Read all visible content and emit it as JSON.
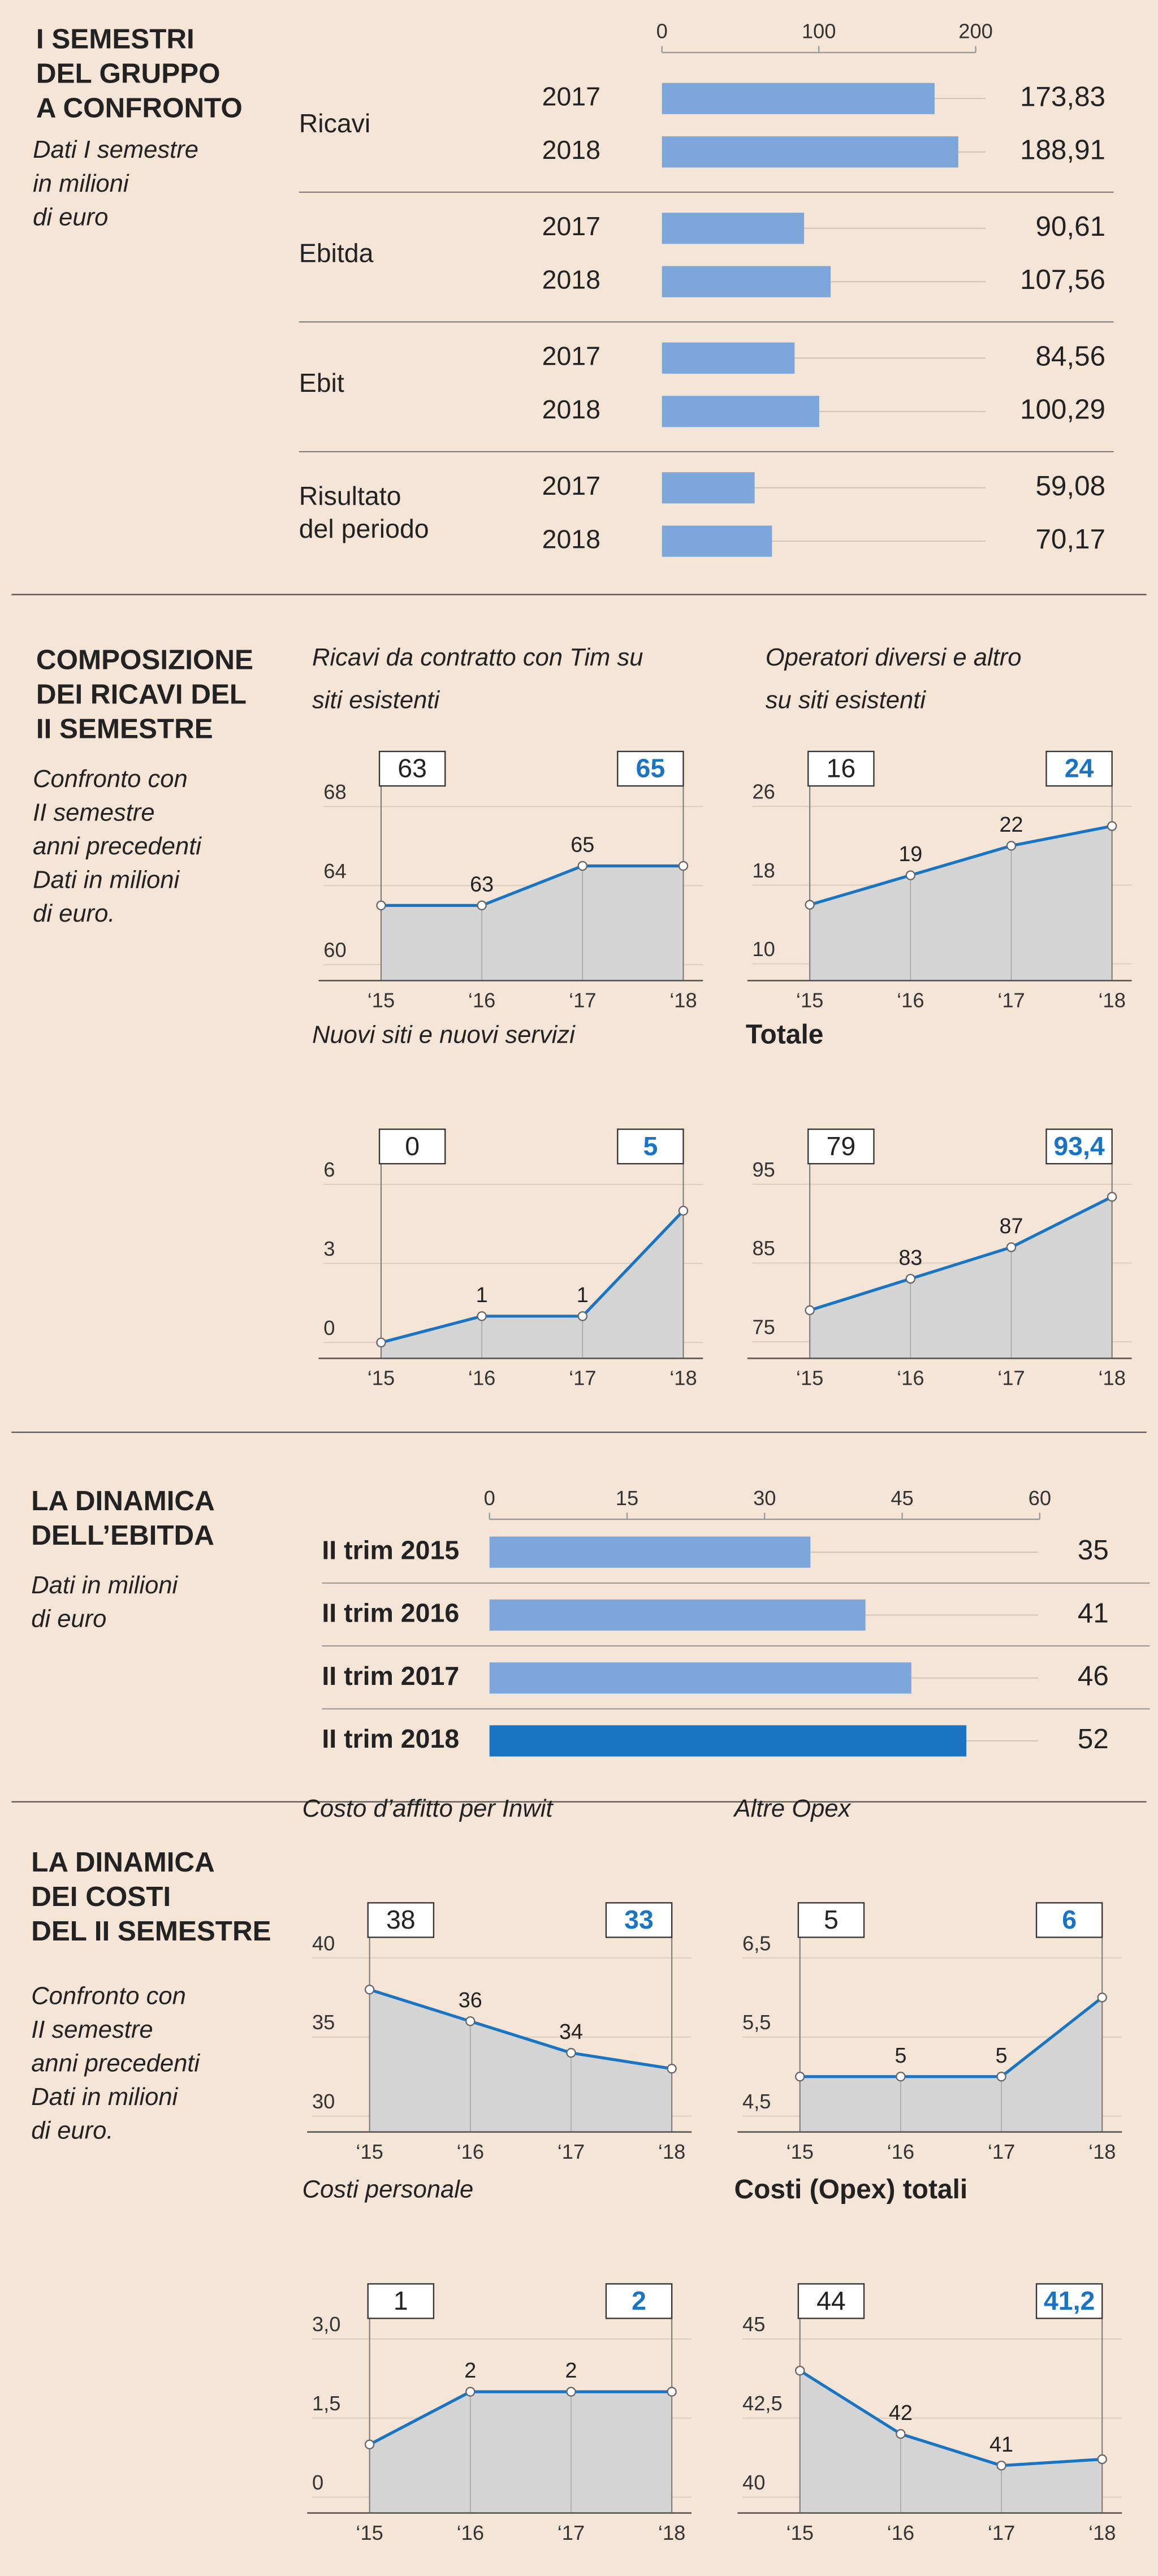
{
  "sections": [
    {
      "title": "I SEMESTRI\nDEL GRUPPO\nA CONFRONTO",
      "subtitle": "Dati I semestre\nin milioni\ndi euro"
    },
    {
      "title": "COMPOSIZIONE\nDEI RICAVI DEL\nII SEMESTRE",
      "subtitle": "Confronto con\nII semestre\nanni precedenti\nDati in milioni\ndi euro."
    },
    {
      "title": "LA DINAMICA\nDELL’EBITDA",
      "subtitle": "Dati in milioni\ndi euro"
    },
    {
      "title": "LA DINAMICA\nDEI COSTI\nDEL II SEMESTRE",
      "subtitle": "Confronto con\nII semestre\nanni precedenti\nDati in milioni\ndi euro."
    }
  ],
  "chart_data": [
    {
      "type": "bar",
      "orientation": "horizontal",
      "categories": [
        "Ricavi",
        "Ebitda",
        "Ebit",
        "Risultato\ndel periodo"
      ],
      "series": [
        {
          "name": "2017",
          "color": "#7da7da",
          "values": [
            173.83,
            90.61,
            84.56,
            59.08
          ],
          "value_labels": [
            "173,83",
            "90,61",
            "84,56",
            "59,08"
          ]
        },
        {
          "name": "2018",
          "color": "#7da7da",
          "values": [
            188.91,
            107.56,
            100.29,
            70.17
          ],
          "value_labels": [
            "188,91",
            "107,56",
            "100,29",
            "70,17"
          ]
        }
      ],
      "xlim": [
        0,
        200
      ],
      "xticks": [
        0,
        100,
        200
      ]
    },
    {
      "type": "area",
      "title": "Ricavi da contratto con Tim su\nsiti esistenti",
      "categories": [
        "‘15",
        "‘16",
        "‘17",
        "‘18"
      ],
      "values": [
        63,
        63,
        65,
        65
      ],
      "ylim": [
        59.2,
        70
      ],
      "yticks": [
        60,
        64,
        68
      ],
      "color": "#1a74c4"
    },
    {
      "type": "area",
      "title": "Operatori diversi e altro\nsu siti esistenti",
      "categories": [
        "‘15",
        "‘16",
        "‘17",
        "‘18"
      ],
      "values": [
        16,
        19,
        22,
        24
      ],
      "ylim": [
        8.3,
        30
      ],
      "yticks": [
        10,
        18,
        26
      ],
      "color": "#1a74c4"
    },
    {
      "type": "area",
      "title": "Nuovi siti e nuovi servizi",
      "categories": [
        "‘15",
        "‘16",
        "‘17",
        "‘18"
      ],
      "values": [
        0,
        1,
        1,
        5
      ],
      "ylim": [
        -0.6,
        7.5
      ],
      "yticks": [
        0,
        3,
        6
      ],
      "color": "#1a74c4"
    },
    {
      "type": "area",
      "title": "Totale",
      "title_bold": true,
      "categories": [
        "‘15",
        "‘16",
        "‘17",
        "‘18"
      ],
      "values": [
        79,
        83,
        87,
        93.4
      ],
      "value_labels": [
        "79",
        "83",
        "87",
        "93,4"
      ],
      "ylim": [
        72.9,
        100
      ],
      "yticks": [
        75,
        85,
        95
      ],
      "color": "#1a74c4"
    },
    {
      "type": "bar",
      "orientation": "horizontal",
      "categories": [
        "II trim 2015",
        "II trim 2016",
        "II trim 2017",
        "II trim 2018"
      ],
      "values": [
        35,
        41,
        46,
        52
      ],
      "colors": [
        "#7da7da",
        "#7da7da",
        "#7da7da",
        "#1a74c4"
      ],
      "xlim": [
        0,
        60
      ],
      "xticks": [
        0,
        15,
        30,
        45,
        60
      ]
    },
    {
      "type": "area",
      "title": "Costo d’affitto per Inwit",
      "categories": [
        "‘15",
        "‘16",
        "‘17",
        "‘18"
      ],
      "values": [
        38,
        36,
        34,
        33
      ],
      "ylim": [
        29,
        42.5
      ],
      "yticks": [
        30,
        35,
        40
      ],
      "color": "#1a74c4"
    },
    {
      "type": "area",
      "title": "Altre Opex",
      "categories": [
        "‘15",
        "‘16",
        "‘17",
        "‘18"
      ],
      "values": [
        5,
        5,
        5,
        6
      ],
      "ylim": [
        4.3,
        7
      ],
      "yticks": [
        {
          "value": 4.5,
          "label": "4,5"
        },
        {
          "value": 5.5,
          "label": "5,5"
        },
        {
          "value": 6.5,
          "label": "6,5"
        }
      ],
      "color": "#1a74c4"
    },
    {
      "type": "area",
      "title": "Costi personale",
      "categories": [
        "‘15",
        "‘16",
        "‘17",
        "‘18"
      ],
      "values": [
        1,
        2,
        2,
        2
      ],
      "ylim": [
        -0.3,
        3.75
      ],
      "yticks": [
        0,
        {
          "value": 1.5,
          "label": "1,5"
        },
        {
          "value": 3,
          "label": "3,0"
        }
      ],
      "color": "#1a74c4"
    },
    {
      "type": "area",
      "title": "Costi (Opex) totali",
      "title_bold": true,
      "categories": [
        "‘15",
        "‘16",
        "‘17",
        "‘18"
      ],
      "values": [
        44,
        42,
        41,
        41.2
      ],
      "value_labels": [
        "44",
        "42",
        "41",
        "41,2"
      ],
      "ylim": [
        39.5,
        46.25
      ],
      "yticks": [
        40,
        {
          "value": 42.5,
          "label": "42,5"
        },
        45
      ],
      "color": "#1a74c4"
    }
  ]
}
